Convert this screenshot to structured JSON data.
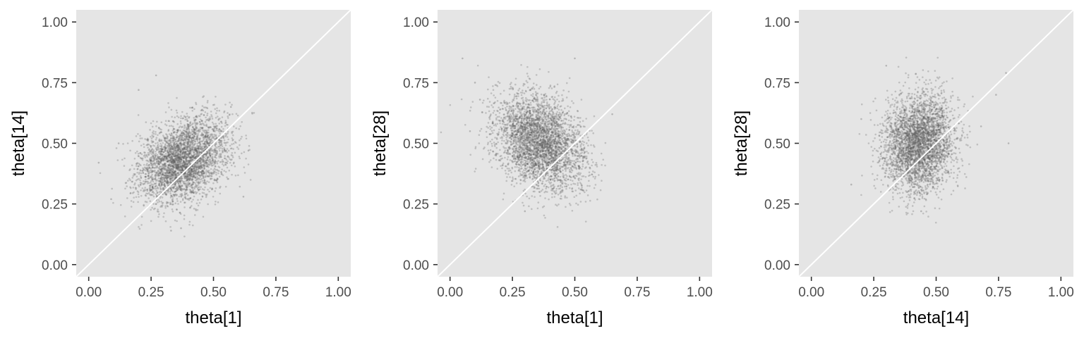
{
  "colors": {
    "panel_background": "#e5e5e5",
    "point": "#5c5c5c",
    "reference_line": "#ffffff",
    "tick_text": "#4d4d4d",
    "tick_mark": "#333333"
  },
  "chart_data": [
    {
      "type": "scatter",
      "title": "",
      "xlabel": "theta[1]",
      "ylabel": "theta[14]",
      "xlim": [
        -0.05,
        1.05
      ],
      "ylim": [
        -0.05,
        1.05
      ],
      "xticks": [
        "0.00",
        "0.25",
        "0.50",
        "0.75",
        "1.00"
      ],
      "yticks": [
        "0.00",
        "0.25",
        "0.50",
        "0.75",
        "1.00"
      ],
      "grid": false,
      "reference_line": "y = x",
      "point_cloud": {
        "center": [
          0.38,
          0.43
        ],
        "sd": [
          0.09,
          0.085
        ],
        "corr": 0.3,
        "n": 3500
      },
      "points": [
        [
          0.04,
          0.42
        ],
        [
          0.27,
          0.78
        ],
        [
          0.33,
          0.14
        ],
        [
          0.37,
          0.15
        ],
        [
          0.62,
          0.28
        ],
        [
          0.57,
          0.65
        ],
        [
          0.09,
          0.27
        ],
        [
          0.2,
          0.72
        ],
        [
          0.64,
          0.47
        ],
        [
          0.12,
          0.5
        ]
      ]
    },
    {
      "type": "scatter",
      "title": "",
      "xlabel": "theta[1]",
      "ylabel": "theta[28]",
      "xlim": [
        -0.05,
        1.05
      ],
      "ylim": [
        -0.05,
        1.05
      ],
      "xticks": [
        "0.00",
        "0.25",
        "0.50",
        "0.75",
        "1.00"
      ],
      "yticks": [
        "0.00",
        "0.25",
        "0.50",
        "0.75",
        "1.00"
      ],
      "grid": false,
      "reference_line": "y = x",
      "point_cloud": {
        "center": [
          0.36,
          0.5
        ],
        "sd": [
          0.09,
          0.1
        ],
        "corr": -0.3,
        "n": 3500
      },
      "points": [
        [
          0.05,
          0.85
        ],
        [
          0.3,
          0.22
        ],
        [
          0.65,
          0.62
        ],
        [
          0.6,
          0.6
        ],
        [
          0.1,
          0.75
        ],
        [
          0.08,
          0.55
        ],
        [
          0.12,
          0.68
        ],
        [
          0.5,
          0.85
        ],
        [
          0.56,
          0.4
        ]
      ]
    },
    {
      "type": "scatter",
      "title": "",
      "xlabel": "theta[14]",
      "ylabel": "theta[28]",
      "xlim": [
        -0.05,
        1.05
      ],
      "ylim": [
        -0.05,
        1.05
      ],
      "xticks": [
        "0.00",
        "0.25",
        "0.50",
        "0.75",
        "1.00"
      ],
      "yticks": [
        "0.00",
        "0.25",
        "0.50",
        "0.75",
        "1.00"
      ],
      "grid": false,
      "reference_line": "y = x",
      "point_cloud": {
        "center": [
          0.43,
          0.5
        ],
        "sd": [
          0.07,
          0.1
        ],
        "corr": 0.05,
        "n": 3500
      },
      "points": [
        [
          0.16,
          0.33
        ],
        [
          0.44,
          0.22
        ],
        [
          0.79,
          0.5
        ],
        [
          0.74,
          0.7
        ],
        [
          0.78,
          0.79
        ],
        [
          0.2,
          0.6
        ],
        [
          0.3,
          0.82
        ],
        [
          0.68,
          0.57
        ]
      ]
    }
  ]
}
